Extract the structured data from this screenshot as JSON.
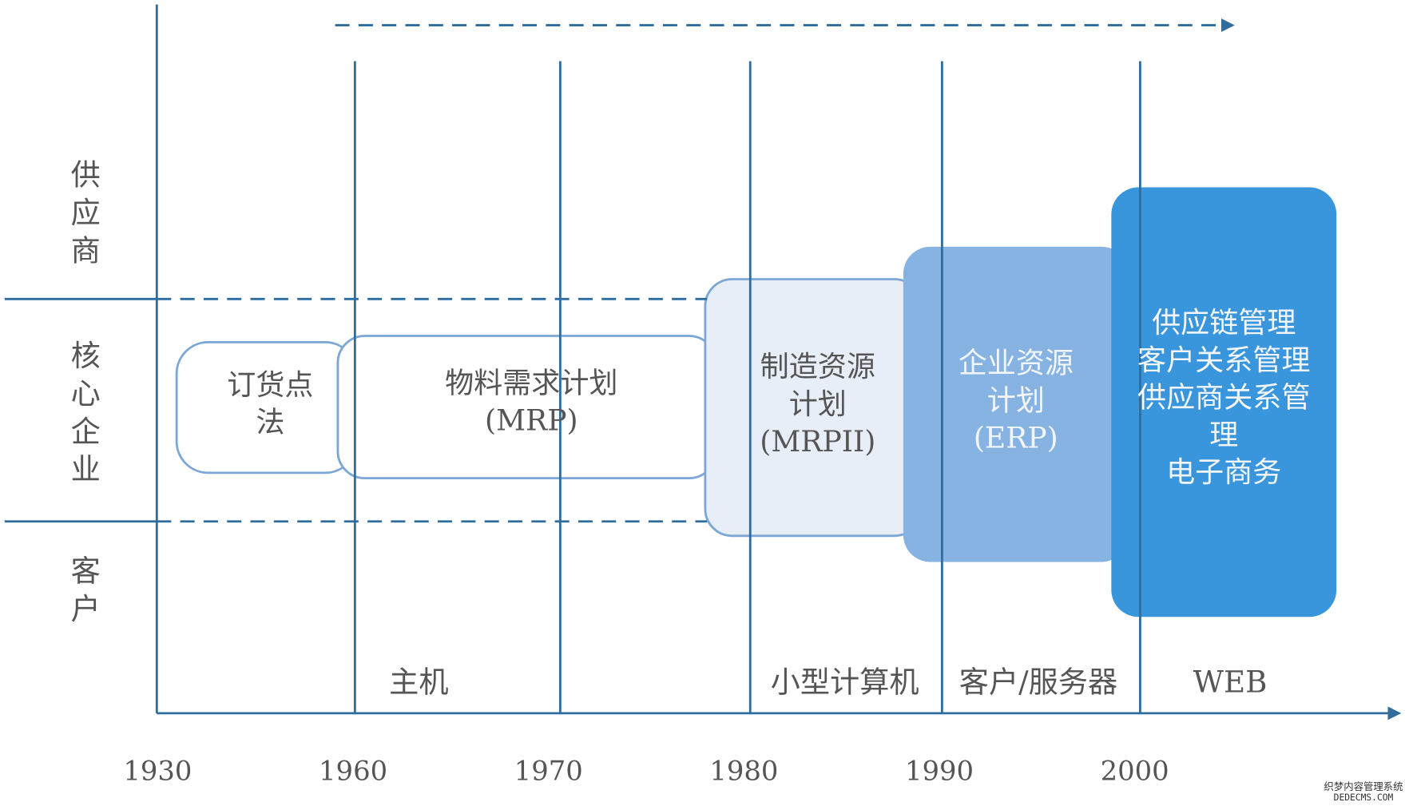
{
  "rows": [
    [
      "供",
      "应",
      "商"
    ],
    [
      "核",
      "心",
      "企",
      "业"
    ],
    [
      "客",
      "户"
    ]
  ],
  "years": [
    "1930",
    "1960",
    "1970",
    "1980",
    "1990",
    "2000"
  ],
  "eras": [
    "主机",
    "小型计算机",
    "客户/服务器",
    "WEB"
  ],
  "boxes": [
    [
      "订货点",
      "法"
    ],
    [
      "物料需求计划",
      "(MRP)"
    ],
    [
      "制造资源",
      "计划",
      "(MRPII)"
    ],
    [
      "企业资源",
      "计划",
      "(ERP)"
    ],
    [
      "供应链管理",
      "客户关系管理",
      "供应商关系管",
      "理",
      "电子商务"
    ]
  ],
  "watermark": [
    "织梦内容管理系统",
    "DEDECMS.COM"
  ]
}
